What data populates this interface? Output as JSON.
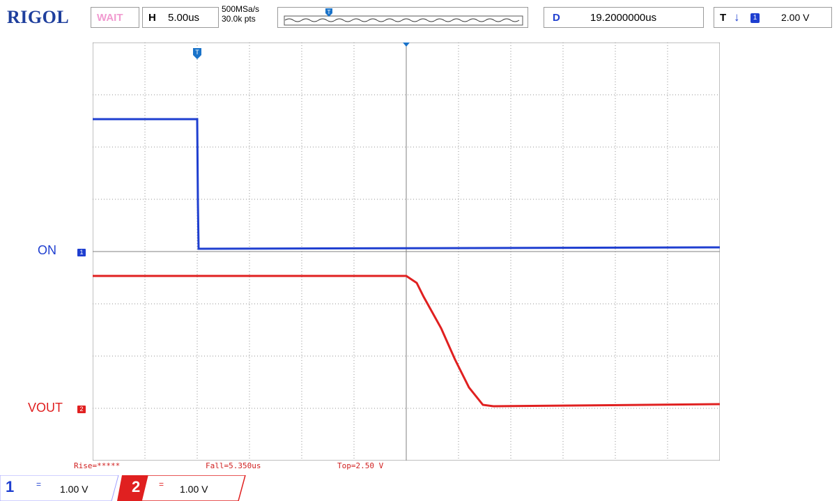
{
  "brand": "RIGOL",
  "status": "WAIT",
  "horizontal": {
    "letter": "H",
    "timebase": "5.00us"
  },
  "acquisition": {
    "sample_rate": "500MSa/s",
    "points": "30.0k pts"
  },
  "delay": {
    "letter": "D",
    "value": "19.2000000us"
  },
  "trigger": {
    "letter": "T",
    "source": "1",
    "level": "2.00 V",
    "marker": "T"
  },
  "channels": [
    {
      "id": "1",
      "label": "ON",
      "coupling": "=",
      "scale": "1.00 V",
      "color": "#1f3fd0"
    },
    {
      "id": "2",
      "label": "VOUT",
      "coupling": "=",
      "scale": "1.00 V",
      "color": "#e02020"
    }
  ],
  "measurements": {
    "rise": "Rise=*****",
    "fall": "Fall=5.350us",
    "top": "Top=2.50 V"
  }
}
